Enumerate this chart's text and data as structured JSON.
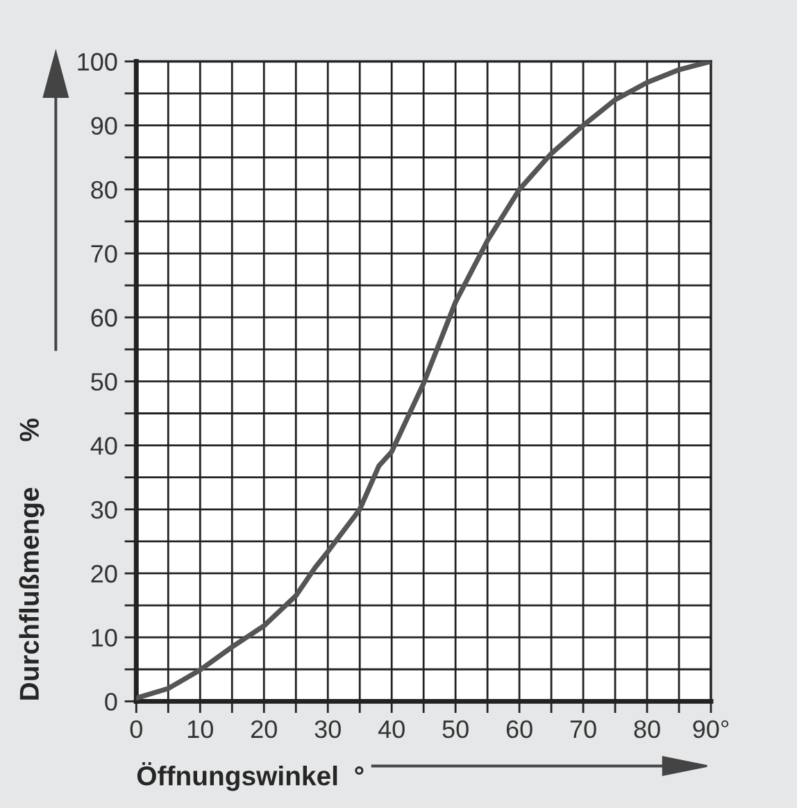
{
  "chart_data": {
    "type": "line",
    "xlabel": "Öffnungswinkel  °",
    "ylabel": "Durchflußmenge      %",
    "x": [
      0,
      5,
      10,
      15,
      20,
      25,
      28,
      30,
      35,
      38,
      40,
      42.8,
      45,
      50,
      55,
      60,
      65,
      70,
      75,
      80,
      85,
      90
    ],
    "series": [
      {
        "color": "#555555",
        "values": [
          0.5,
          2,
          4.9,
          8.5,
          11.8,
          16.5,
          20.9,
          23.4,
          30,
          36.8,
          39,
          45,
          49.7,
          62.4,
          72,
          80,
          85.6,
          90,
          94,
          96.7,
          98.7,
          100
        ]
      }
    ],
    "xlim": [
      0,
      90
    ],
    "ylim": [
      0,
      100
    ],
    "xticks": [
      0,
      {
        "value": 5,
        "label": null
      },
      10,
      {
        "value": 15,
        "label": null
      },
      20,
      {
        "value": 25,
        "label": null
      },
      30,
      {
        "value": 35,
        "label": null
      },
      40,
      {
        "value": 45,
        "label": null
      },
      50,
      {
        "value": 55,
        "label": null
      },
      60,
      {
        "value": 65,
        "label": null
      },
      70,
      {
        "value": 75,
        "label": null
      },
      80,
      {
        "value": 85,
        "label": null
      },
      {
        "value": 90,
        "label": "90°"
      }
    ],
    "yticks": [
      0,
      {
        "value": 5,
        "label": null
      },
      10,
      {
        "value": 15,
        "label": null
      },
      20,
      {
        "value": 25,
        "label": null
      },
      30,
      {
        "value": 35,
        "label": null
      },
      40,
      {
        "value": 45,
        "label": null
      },
      50,
      {
        "value": 55,
        "label": null
      },
      60,
      {
        "value": 65,
        "label": null
      },
      70,
      {
        "value": 75,
        "label": null
      },
      80,
      {
        "value": 85,
        "label": null
      },
      90,
      {
        "value": 95,
        "label": null
      },
      100
    ],
    "grid": true,
    "marker": "none",
    "line_style": "solid",
    "legend": false
  }
}
